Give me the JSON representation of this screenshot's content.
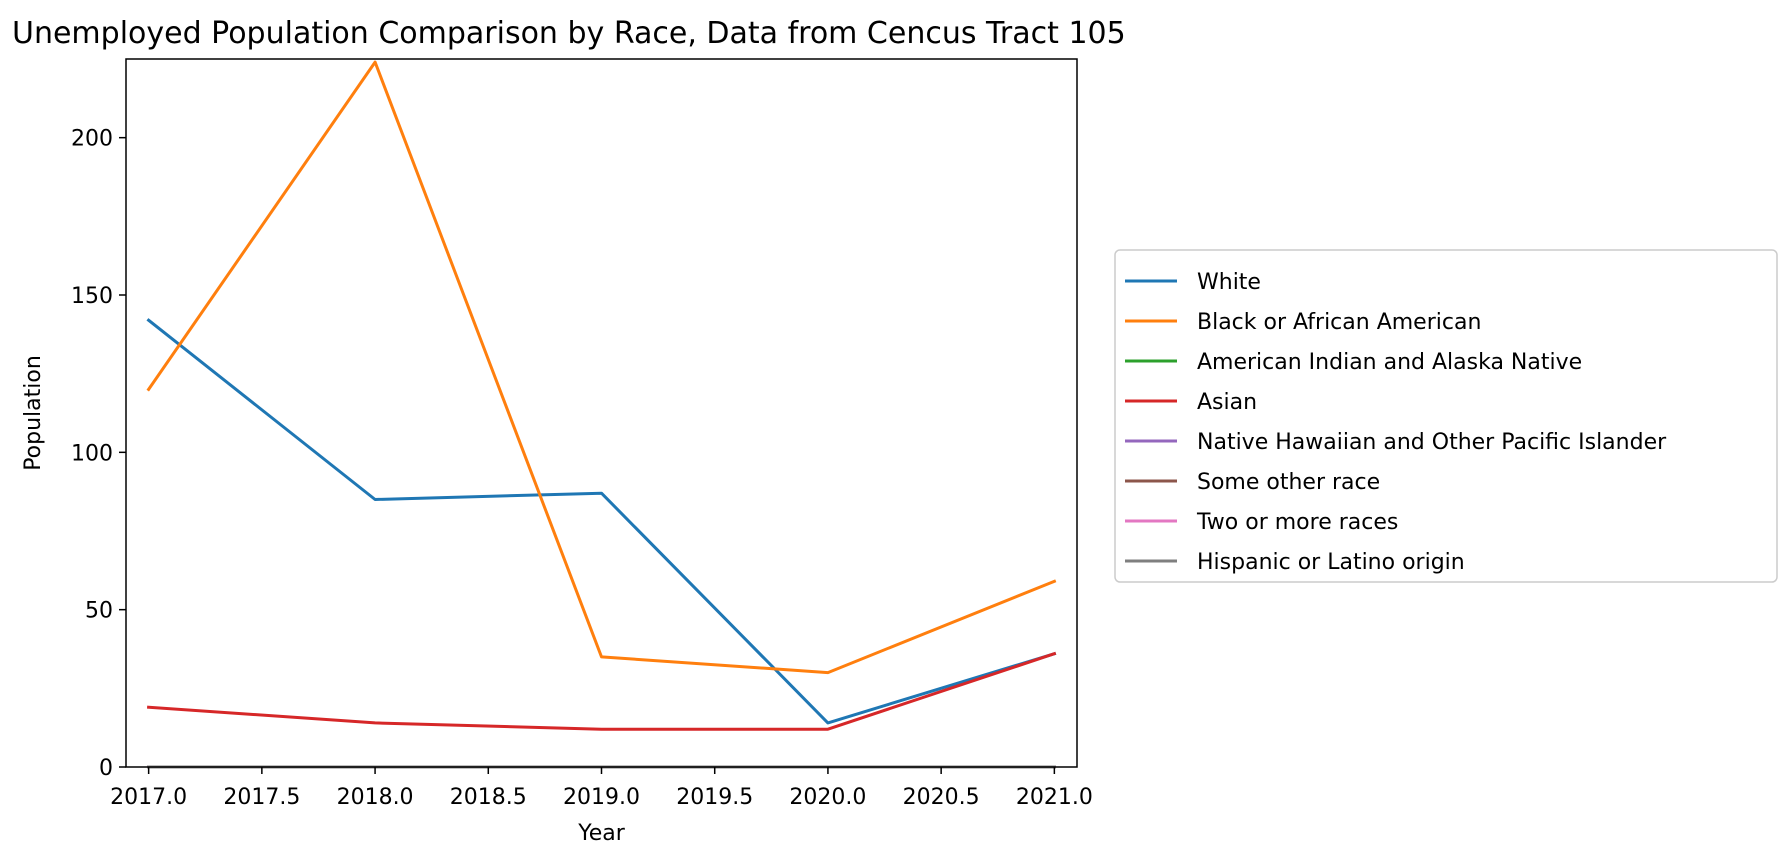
{
  "chart_data": {
    "type": "line",
    "title": "Unemployed Population Comparison by Race, Data from Cencus Tract 105",
    "xlabel": "Year",
    "ylabel": "Population",
    "x": [
      2017,
      2018,
      2019,
      2020,
      2021
    ],
    "xlim": [
      2016.9,
      2021.1
    ],
    "ylim": [
      0,
      225
    ],
    "xticks": [
      2017.0,
      2017.5,
      2018.0,
      2018.5,
      2019.0,
      2019.5,
      2020.0,
      2020.5,
      2021.0
    ],
    "xtick_labels": [
      "2017.0",
      "2017.5",
      "2018.0",
      "2018.5",
      "2019.0",
      "2019.5",
      "2020.0",
      "2020.5",
      "2021.0"
    ],
    "yticks": [
      0,
      50,
      100,
      150,
      200
    ],
    "ytick_labels": [
      "0",
      "50",
      "100",
      "150",
      "200"
    ],
    "grid": false,
    "legend_position": "outside-right",
    "series": [
      {
        "name": "White",
        "color": "#1f77b4",
        "values": [
          142,
          85,
          87,
          14,
          36
        ]
      },
      {
        "name": "Black or African American",
        "color": "#ff7f0e",
        "values": [
          120,
          224,
          35,
          30,
          59
        ]
      },
      {
        "name": "American Indian and Alaska Native",
        "color": "#2ca02c",
        "values": [
          0,
          0,
          0,
          0,
          0
        ]
      },
      {
        "name": "Asian",
        "color": "#d62728",
        "values": [
          19,
          14,
          12,
          12,
          36
        ]
      },
      {
        "name": "Native Hawaiian and Other Pacific Islander",
        "color": "#9467bd",
        "values": [
          0,
          0,
          0,
          0,
          0
        ]
      },
      {
        "name": "Some other race",
        "color": "#8c564b",
        "values": [
          0,
          0,
          0,
          0,
          0
        ]
      },
      {
        "name": "Two or more races",
        "color": "#e377c2",
        "values": [
          0,
          0,
          0,
          0,
          0
        ]
      },
      {
        "name": "Hispanic or Latino origin",
        "color": "#7f7f7f",
        "values": [
          0,
          0,
          0,
          0,
          0
        ]
      }
    ]
  }
}
